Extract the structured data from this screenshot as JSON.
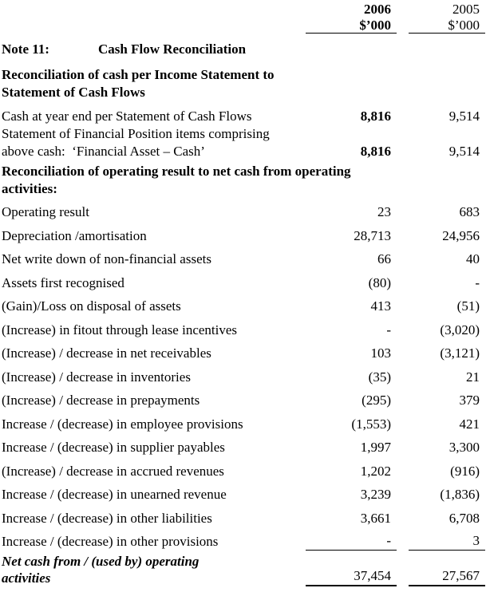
{
  "colors": {
    "text": "#000000",
    "background": "#ffffff"
  },
  "columns": {
    "y2006": {
      "year": "2006",
      "unit": "$’000"
    },
    "y2005": {
      "year": "2005",
      "unit": "$’000"
    }
  },
  "note": {
    "label": "Note 11:",
    "title": "Cash Flow Reconciliation"
  },
  "rows": [
    {
      "type": "heading",
      "lines": [
        "Reconciliation of cash per Income Statement to",
        "Statement of Cash Flows"
      ]
    },
    {
      "type": "item",
      "lines": [
        "Cash at year end per Statement of Cash Flows"
      ],
      "v2006": "8,816",
      "v2005": "9,514",
      "bold2006": true
    },
    {
      "type": "item",
      "lines": [
        "Statement of Financial Position items comprising",
        "above cash:  ‘Financial Asset – Cash’"
      ],
      "v2006": "8,816",
      "v2005": "9,514",
      "bold2006": true
    },
    {
      "type": "heading",
      "lines": [
        "Reconciliation of operating result to net cash from operating",
        "activities:"
      ]
    },
    {
      "type": "item",
      "lines": [
        "Operating result"
      ],
      "v2006": "23",
      "v2005": "683"
    },
    {
      "type": "item",
      "lines": [
        "Depreciation /amortisation"
      ],
      "v2006": "28,713",
      "v2005": "24,956"
    },
    {
      "type": "item",
      "lines": [
        "Net write down of non-financial assets"
      ],
      "v2006": "66",
      "v2005": "40"
    },
    {
      "type": "item",
      "lines": [
        "Assets first recognised"
      ],
      "v2006": "(80)",
      "v2005": "-"
    },
    {
      "type": "item",
      "lines": [
        "(Gain)/Loss on disposal of assets"
      ],
      "v2006": "413",
      "v2005": "(51)"
    },
    {
      "type": "item",
      "lines": [
        "(Increase) in fitout through lease incentives"
      ],
      "v2006": "-",
      "v2005": "(3,020)"
    },
    {
      "type": "item",
      "lines": [
        "(Increase) / decrease in net receivables"
      ],
      "v2006": "103",
      "v2005": "(3,121)"
    },
    {
      "type": "item",
      "lines": [
        "(Increase) / decrease in inventories"
      ],
      "v2006": "(35)",
      "v2005": "21"
    },
    {
      "type": "item",
      "lines": [
        "(Increase) / decrease in prepayments"
      ],
      "v2006": "(295)",
      "v2005": "379"
    },
    {
      "type": "item",
      "lines": [
        "Increase / (decrease) in employee provisions"
      ],
      "v2006": "(1,553)",
      "v2005": "421"
    },
    {
      "type": "item",
      "lines": [
        "Increase / (decrease) in supplier payables"
      ],
      "v2006": "1,997",
      "v2005": "3,300"
    },
    {
      "type": "item",
      "lines": [
        "(Increase) / decrease in accrued revenues"
      ],
      "v2006": "1,202",
      "v2005": "(916)"
    },
    {
      "type": "item",
      "lines": [
        "Increase / (decrease) in unearned revenue"
      ],
      "v2006": "3,239",
      "v2005": "(1,836)"
    },
    {
      "type": "item",
      "lines": [
        "Increase / (decrease) in other liabilities"
      ],
      "v2006": "3,661",
      "v2005": "6,708"
    },
    {
      "type": "item",
      "lines": [
        "Increase / (decrease) in other provisions"
      ],
      "v2006": "-",
      "v2005": "3",
      "rule": true
    },
    {
      "type": "total",
      "lines": [
        "Net cash from / (used by) operating",
        "activities"
      ],
      "v2006": "37,454",
      "v2005": "27,567"
    }
  ]
}
